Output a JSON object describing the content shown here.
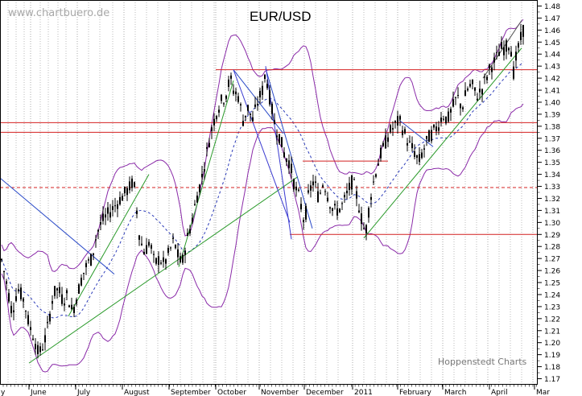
{
  "header": {
    "watermark": "www.chartbuero.de",
    "source": "Hoppenstedt Charts"
  },
  "chart_data": {
    "type": "candlestick",
    "title": "EUR/USD",
    "xlabel": "",
    "ylabel": "",
    "ylim": [
      1.165,
      1.485
    ],
    "y_ticks": [
      "1.17",
      "1.18",
      "1.19",
      "1.20",
      "1.21",
      "1.22",
      "1.23",
      "1.24",
      "1.25",
      "1.26",
      "1.27",
      "1.28",
      "1.29",
      "1.30",
      "1.31",
      "1.32",
      "1.33",
      "1.34",
      "1.35",
      "1.36",
      "1.37",
      "1.38",
      "1.39",
      "1.40",
      "1.41",
      "1.42",
      "1.43",
      "1.44",
      "1.45",
      "1.46",
      "1.47",
      "1.48"
    ],
    "x_period": [
      "May",
      "Mar"
    ],
    "x_months": [
      "June",
      "July",
      "August",
      "September",
      "October",
      "November",
      "December",
      "2011",
      "February",
      "March",
      "April",
      "Mar"
    ],
    "grid": true,
    "legend": "none",
    "price_path": [
      [
        0,
        1.275
      ],
      [
        8,
        1.25
      ],
      [
        15,
        1.225
      ],
      [
        22,
        1.245
      ],
      [
        30,
        1.235
      ],
      [
        36,
        1.215
      ],
      [
        42,
        1.205
      ],
      [
        48,
        1.19
      ],
      [
        55,
        1.2
      ],
      [
        60,
        1.215
      ],
      [
        66,
        1.24
      ],
      [
        72,
        1.245
      ],
      [
        78,
        1.235
      ],
      [
        84,
        1.24
      ],
      [
        90,
        1.225
      ],
      [
        96,
        1.24
      ],
      [
        102,
        1.255
      ],
      [
        108,
        1.265
      ],
      [
        114,
        1.27
      ],
      [
        120,
        1.29
      ],
      [
        126,
        1.3
      ],
      [
        132,
        1.305
      ],
      [
        138,
        1.31
      ],
      [
        144,
        1.315
      ],
      [
        150,
        1.32
      ],
      [
        156,
        1.325
      ],
      [
        162,
        1.33
      ],
      [
        166,
        1.335
      ],
      [
        170,
        1.31
      ],
      [
        174,
        1.285
      ],
      [
        180,
        1.275
      ],
      [
        186,
        1.285
      ],
      [
        192,
        1.265
      ],
      [
        198,
        1.27
      ],
      [
        204,
        1.265
      ],
      [
        210,
        1.275
      ],
      [
        216,
        1.285
      ],
      [
        222,
        1.27
      ],
      [
        226,
        1.265
      ],
      [
        232,
        1.285
      ],
      [
        238,
        1.3
      ],
      [
        244,
        1.32
      ],
      [
        250,
        1.335
      ],
      [
        256,
        1.355
      ],
      [
        262,
        1.375
      ],
      [
        268,
        1.39
      ],
      [
        274,
        1.4
      ],
      [
        280,
        1.405
      ],
      [
        286,
        1.42
      ],
      [
        290,
        1.41
      ],
      [
        296,
        1.405
      ],
      [
        302,
        1.385
      ],
      [
        308,
        1.395
      ],
      [
        314,
        1.385
      ],
      [
        320,
        1.4
      ],
      [
        326,
        1.41
      ],
      [
        330,
        1.425
      ],
      [
        336,
        1.4
      ],
      [
        342,
        1.38
      ],
      [
        348,
        1.37
      ],
      [
        354,
        1.355
      ],
      [
        360,
        1.35
      ],
      [
        366,
        1.33
      ],
      [
        372,
        1.32
      ],
      [
        378,
        1.3
      ],
      [
        384,
        1.325
      ],
      [
        390,
        1.335
      ],
      [
        396,
        1.32
      ],
      [
        402,
        1.335
      ],
      [
        408,
        1.32
      ],
      [
        414,
        1.31
      ],
      [
        420,
        1.31
      ],
      [
        426,
        1.315
      ],
      [
        432,
        1.325
      ],
      [
        438,
        1.335
      ],
      [
        444,
        1.32
      ],
      [
        450,
        1.3
      ],
      [
        454,
        1.29
      ],
      [
        460,
        1.32
      ],
      [
        466,
        1.34
      ],
      [
        472,
        1.355
      ],
      [
        478,
        1.365
      ],
      [
        484,
        1.375
      ],
      [
        490,
        1.38
      ],
      [
        496,
        1.385
      ],
      [
        502,
        1.375
      ],
      [
        508,
        1.365
      ],
      [
        514,
        1.36
      ],
      [
        520,
        1.35
      ],
      [
        526,
        1.36
      ],
      [
        532,
        1.37
      ],
      [
        538,
        1.375
      ],
      [
        544,
        1.38
      ],
      [
        550,
        1.39
      ],
      [
        556,
        1.385
      ],
      [
        562,
        1.395
      ],
      [
        568,
        1.405
      ],
      [
        574,
        1.395
      ],
      [
        580,
        1.41
      ],
      [
        586,
        1.415
      ],
      [
        592,
        1.405
      ],
      [
        598,
        1.41
      ],
      [
        604,
        1.42
      ],
      [
        610,
        1.43
      ],
      [
        616,
        1.435
      ],
      [
        622,
        1.445
      ],
      [
        628,
        1.445
      ],
      [
        634,
        1.45
      ],
      [
        638,
        1.425
      ],
      [
        642,
        1.44
      ],
      [
        646,
        1.45
      ],
      [
        650,
        1.46
      ]
    ],
    "horizontal_levels": [
      {
        "y": 1.427,
        "x0": 268,
        "x1": 668,
        "style": "solid"
      },
      {
        "y": 1.383,
        "x0": 0,
        "x1": 668,
        "style": "solid"
      },
      {
        "y": 1.375,
        "x0": 0,
        "x1": 668,
        "style": "solid"
      },
      {
        "y": 1.329,
        "x0": 0,
        "x1": 668,
        "style": "dashed"
      },
      {
        "y": 1.351,
        "x0": 376,
        "x1": 482,
        "style": "solid"
      },
      {
        "y": 1.29,
        "x0": 360,
        "x1": 668,
        "style": "solid"
      }
    ],
    "trend_lines": [
      {
        "color": "#2a9a2a",
        "points": [
          [
            36,
            1.183
          ],
          [
            370,
            1.338
          ]
        ]
      },
      {
        "color": "#2a9a2a",
        "points": [
          [
            85,
            1.222
          ],
          [
            185,
            1.34
          ]
        ]
      },
      {
        "color": "#2a9a2a",
        "points": [
          [
            222,
            1.263
          ],
          [
            290,
            1.418
          ]
        ]
      },
      {
        "color": "#2a9a2a",
        "points": [
          [
            452,
            1.287
          ],
          [
            648,
            1.445
          ]
        ]
      },
      {
        "color": "#2a4ac8",
        "points": [
          [
            0,
            1.337
          ],
          [
            142,
            1.257
          ]
        ]
      },
      {
        "color": "#2a4ac8",
        "points": [
          [
            330,
            1.428
          ],
          [
            388,
            1.295
          ]
        ]
      },
      {
        "color": "#2a4ac8",
        "points": [
          [
            290,
            1.427
          ],
          [
            352,
            1.374
          ]
        ]
      },
      {
        "color": "#2a4ac8",
        "points": [
          [
            496,
            1.385
          ],
          [
            538,
            1.363
          ]
        ]
      },
      {
        "color": "#555555",
        "points": [
          [
            600,
            1.42
          ],
          [
            648,
            1.468
          ]
        ]
      }
    ],
    "channel_lines": [
      {
        "points": [
          [
            290,
            1.427
          ],
          [
            360,
            1.3
          ]
        ]
      },
      {
        "points": [
          [
            330,
            1.43
          ],
          [
            362,
            1.286
          ]
        ]
      }
    ]
  }
}
